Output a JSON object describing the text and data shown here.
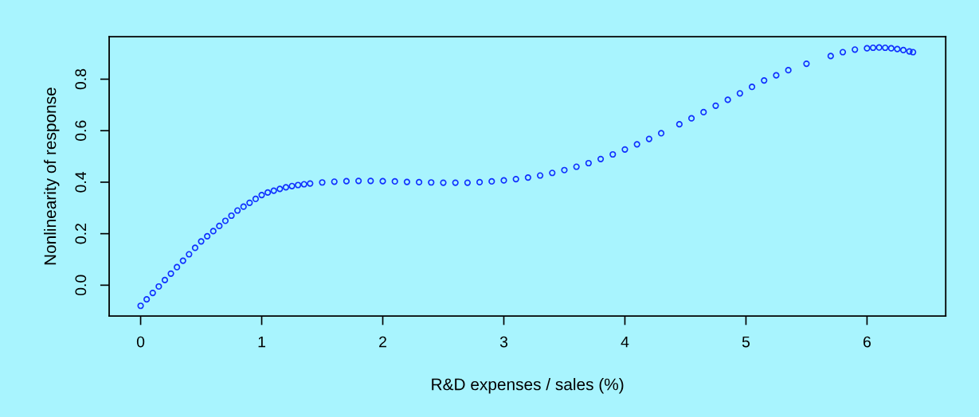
{
  "chart_data": {
    "type": "scatter",
    "xlabel": "R&D expenses / sales (%)",
    "ylabel": "Nonlinearity of response",
    "xlim": [
      -0.26,
      6.65
    ],
    "ylim": [
      -0.12,
      0.965
    ],
    "xticks": [
      0,
      1,
      2,
      3,
      4,
      5,
      6
    ],
    "yticks": [
      {
        "value": 0,
        "label": "0.0"
      },
      0.2,
      0.4,
      0.6,
      0.8
    ],
    "grid": false,
    "marker": "circle",
    "series": [
      {
        "color": "#1030ff",
        "x": [
          0,
          0.05,
          0.1,
          0.15,
          0.2,
          0.25,
          0.3,
          0.35,
          0.4,
          0.45,
          0.5,
          0.55,
          0.6,
          0.65,
          0.7,
          0.75,
          0.8,
          0.85,
          0.9,
          0.95,
          1.0,
          1.05,
          1.1,
          1.15,
          1.2,
          1.25,
          1.3,
          1.35,
          1.4,
          1.5,
          1.6,
          1.7,
          1.8,
          1.9,
          2.0,
          2.1,
          2.2,
          2.3,
          2.4,
          2.5,
          2.6,
          2.7,
          2.8,
          2.9,
          3.0,
          3.1,
          3.2,
          3.3,
          3.4,
          3.5,
          3.6,
          3.7,
          3.8,
          3.9,
          4.0,
          4.1,
          4.2,
          4.3,
          4.45,
          4.55,
          4.65,
          4.75,
          4.85,
          4.95,
          5.05,
          5.15,
          5.25,
          5.35,
          5.5,
          5.7,
          5.8,
          5.9,
          6.0,
          6.05,
          6.1,
          6.15,
          6.2,
          6.25,
          6.3,
          6.35,
          6.38
        ],
        "values": [
          -0.08,
          -0.055,
          -0.03,
          -0.005,
          0.02,
          0.045,
          0.07,
          0.095,
          0.12,
          0.145,
          0.17,
          0.19,
          0.21,
          0.23,
          0.25,
          0.27,
          0.29,
          0.305,
          0.32,
          0.335,
          0.35,
          0.36,
          0.367,
          0.374,
          0.38,
          0.385,
          0.389,
          0.392,
          0.395,
          0.399,
          0.402,
          0.404,
          0.405,
          0.405,
          0.404,
          0.403,
          0.401,
          0.4,
          0.399,
          0.398,
          0.398,
          0.398,
          0.4,
          0.403,
          0.407,
          0.412,
          0.418,
          0.426,
          0.436,
          0.447,
          0.46,
          0.474,
          0.49,
          0.508,
          0.527,
          0.547,
          0.568,
          0.59,
          0.625,
          0.648,
          0.672,
          0.697,
          0.72,
          0.745,
          0.77,
          0.795,
          0.815,
          0.835,
          0.86,
          0.89,
          0.905,
          0.915,
          0.92,
          0.922,
          0.923,
          0.922,
          0.92,
          0.917,
          0.913,
          0.908,
          0.905
        ]
      }
    ]
  }
}
